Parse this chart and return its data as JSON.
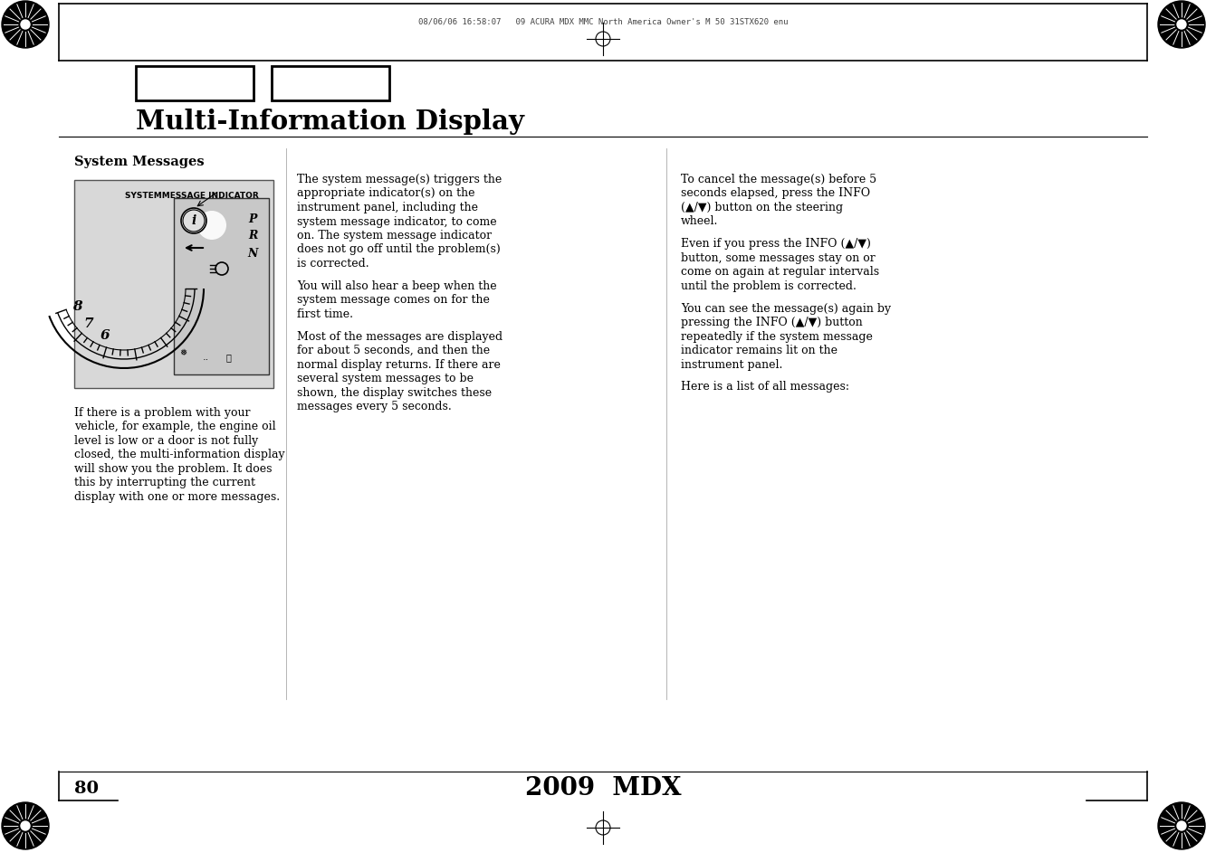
{
  "page_bg": "#ffffff",
  "header_text": "08/06/06 16:58:07   09 ACURA MDX MMC North America Owner's M 50 31STX620 enu",
  "title": "Multi-Information Display",
  "section_title": "System Messages",
  "col1_body_lines": [
    "If there is a problem with your",
    "vehicle, for example, the engine oil",
    "level is low or a door is not fully",
    "closed, the multi-information display",
    "will show you the problem. It does",
    "this by interrupting the current",
    "display with one or more messages."
  ],
  "col2_para1": [
    "The system message(s) triggers the",
    "appropriate indicator(s) on the",
    "instrument panel, including the",
    "system message indicator, to come",
    "on. The system message indicator",
    "does not go off until the problem(s)",
    "is corrected."
  ],
  "col2_para2": [
    "You will also hear a beep when the",
    "system message comes on for the",
    "first time."
  ],
  "col2_para3": [
    "Most of the messages are displayed",
    "for about 5 seconds, and then the",
    "normal display returns. If there are",
    "several system messages to be",
    "shown, the display switches these",
    "messages every 5 seconds."
  ],
  "col3_para1": [
    "To cancel the message(s) before 5",
    "seconds elapsed, press the INFO",
    "(▲/▼) button on the steering",
    "wheel."
  ],
  "col3_para2": [
    "Even if you press the INFO (▲/▼)",
    "button, some messages stay on or",
    "come on again at regular intervals",
    "until the problem is corrected."
  ],
  "col3_para3": [
    "You can see the message(s) again by",
    "pressing the INFO (▲/▼) button",
    "repeatedly if the system message",
    "indicator remains lit on the",
    "instrument panel."
  ],
  "col3_para4": [
    "Here is a list of all messages:"
  ],
  "footer_page": "80",
  "footer_model": "2009  MDX",
  "indicator_label": "SYSTEMMESSAGE INDICATOR"
}
